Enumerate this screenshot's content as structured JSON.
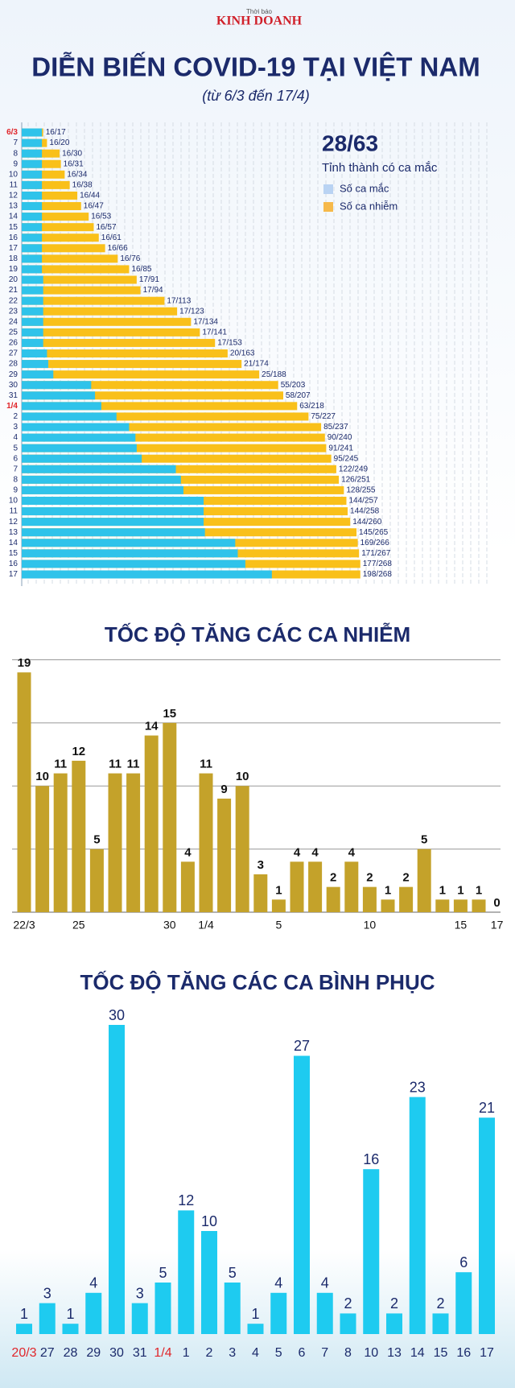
{
  "header": {
    "kicker": "Thời báo",
    "brand": "KINH DOANH"
  },
  "chart_data": [
    {
      "type": "hbar",
      "title": "DIỄN BIẾN COVID-19 TẠI VIỆT NAM",
      "subtitle": "(từ 6/3 đến 17/4)",
      "annotation": "28/63",
      "annotation_text": "Tỉnh thành có ca mắc",
      "highlight_color": "#e0262b",
      "categories": [
        "6/3",
        "7",
        "8",
        "9",
        "10",
        "11",
        "12",
        "13",
        "14",
        "15",
        "16",
        "17",
        "18",
        "19",
        "20",
        "21",
        "22",
        "23",
        "24",
        "25",
        "26",
        "27",
        "28",
        "29",
        "30",
        "31",
        "1/4",
        "2",
        "3",
        "4",
        "5",
        "6",
        "7",
        "8",
        "9",
        "10",
        "11",
        "12",
        "13",
        "14",
        "15",
        "16",
        "17"
      ],
      "series": [
        {
          "name": "Số ca mắc",
          "color": "#2fc3ea",
          "legend_color": "#b9d3f3",
          "values": [
            16,
            16,
            16,
            16,
            16,
            16,
            16,
            16,
            16,
            16,
            16,
            16,
            16,
            16,
            17,
            17,
            17,
            17,
            17,
            17,
            17,
            20,
            21,
            25,
            55,
            58,
            63,
            75,
            85,
            90,
            91,
            95,
            122,
            126,
            128,
            144,
            144,
            144,
            145,
            169,
            171,
            177,
            198
          ]
        },
        {
          "name": "Số ca nhiễm",
          "color": "#f9c01a",
          "legend_color": "#f6b94a",
          "values": [
            17,
            20,
            30,
            31,
            34,
            38,
            44,
            47,
            53,
            57,
            61,
            66,
            76,
            85,
            91,
            94,
            113,
            123,
            134,
            141,
            153,
            163,
            174,
            188,
            203,
            207,
            218,
            227,
            237,
            240,
            241,
            245,
            249,
            251,
            255,
            257,
            258,
            260,
            265,
            266,
            267,
            268,
            268
          ]
        }
      ],
      "value_labels": [
        "16/17",
        "16/20",
        "16/30",
        "16/31",
        "16/34",
        "16/38",
        "16/44",
        "16/47",
        "16/53",
        "16/57",
        "16/61",
        "16/66",
        "16/76",
        "16/85",
        "17/91",
        "17/94",
        "17/113",
        "17/123",
        "17/134",
        "17/141",
        "17/153",
        "20/163",
        "21/174",
        "25/188",
        "55/203",
        "58/207",
        "63/218",
        "75/227",
        "85/237",
        "90/240",
        "91/241",
        "95/245",
        "122/249",
        "126/251",
        "128/255",
        "144/257",
        "144/258",
        "144/260",
        "145/265",
        "169/266",
        "171/267",
        "177/268",
        "198/268"
      ]
    },
    {
      "type": "bar",
      "title": "TỐC ĐỘ TĂNG CÁC CA NHIỄM",
      "color": "#c4a22a",
      "grid": true,
      "categories": [
        "22/3",
        null,
        null,
        "25",
        null,
        null,
        null,
        null,
        "30",
        null,
        "1/4",
        null,
        null,
        null,
        "5",
        null,
        null,
        null,
        null,
        "10",
        null,
        null,
        null,
        null,
        "15",
        null,
        "17"
      ],
      "values": [
        19,
        10,
        11,
        12,
        5,
        11,
        11,
        14,
        15,
        4,
        11,
        9,
        10,
        3,
        1,
        4,
        4,
        2,
        4,
        2,
        1,
        2,
        5,
        1,
        1,
        1,
        0
      ],
      "ylim": [
        0,
        20
      ],
      "yticks": [
        0,
        5,
        10,
        15,
        20
      ]
    },
    {
      "type": "bar",
      "title": "TỐC ĐỘ TĂNG CÁC CA BÌNH PHỤC",
      "color": "#1ecbf0",
      "highlight_color": "#e0262b",
      "categories": [
        "20/3",
        "27",
        "28",
        "29",
        "30",
        "31",
        "1/4",
        "1",
        "2",
        "3",
        "4",
        "5",
        "6",
        "7",
        "8",
        "10",
        "13",
        "14",
        "15",
        "16",
        "17"
      ],
      "values": [
        1,
        3,
        1,
        4,
        30,
        3,
        5,
        12,
        10,
        5,
        1,
        4,
        27,
        4,
        2,
        16,
        2,
        23,
        2,
        6,
        21
      ],
      "ylim": [
        0,
        30
      ]
    }
  ]
}
